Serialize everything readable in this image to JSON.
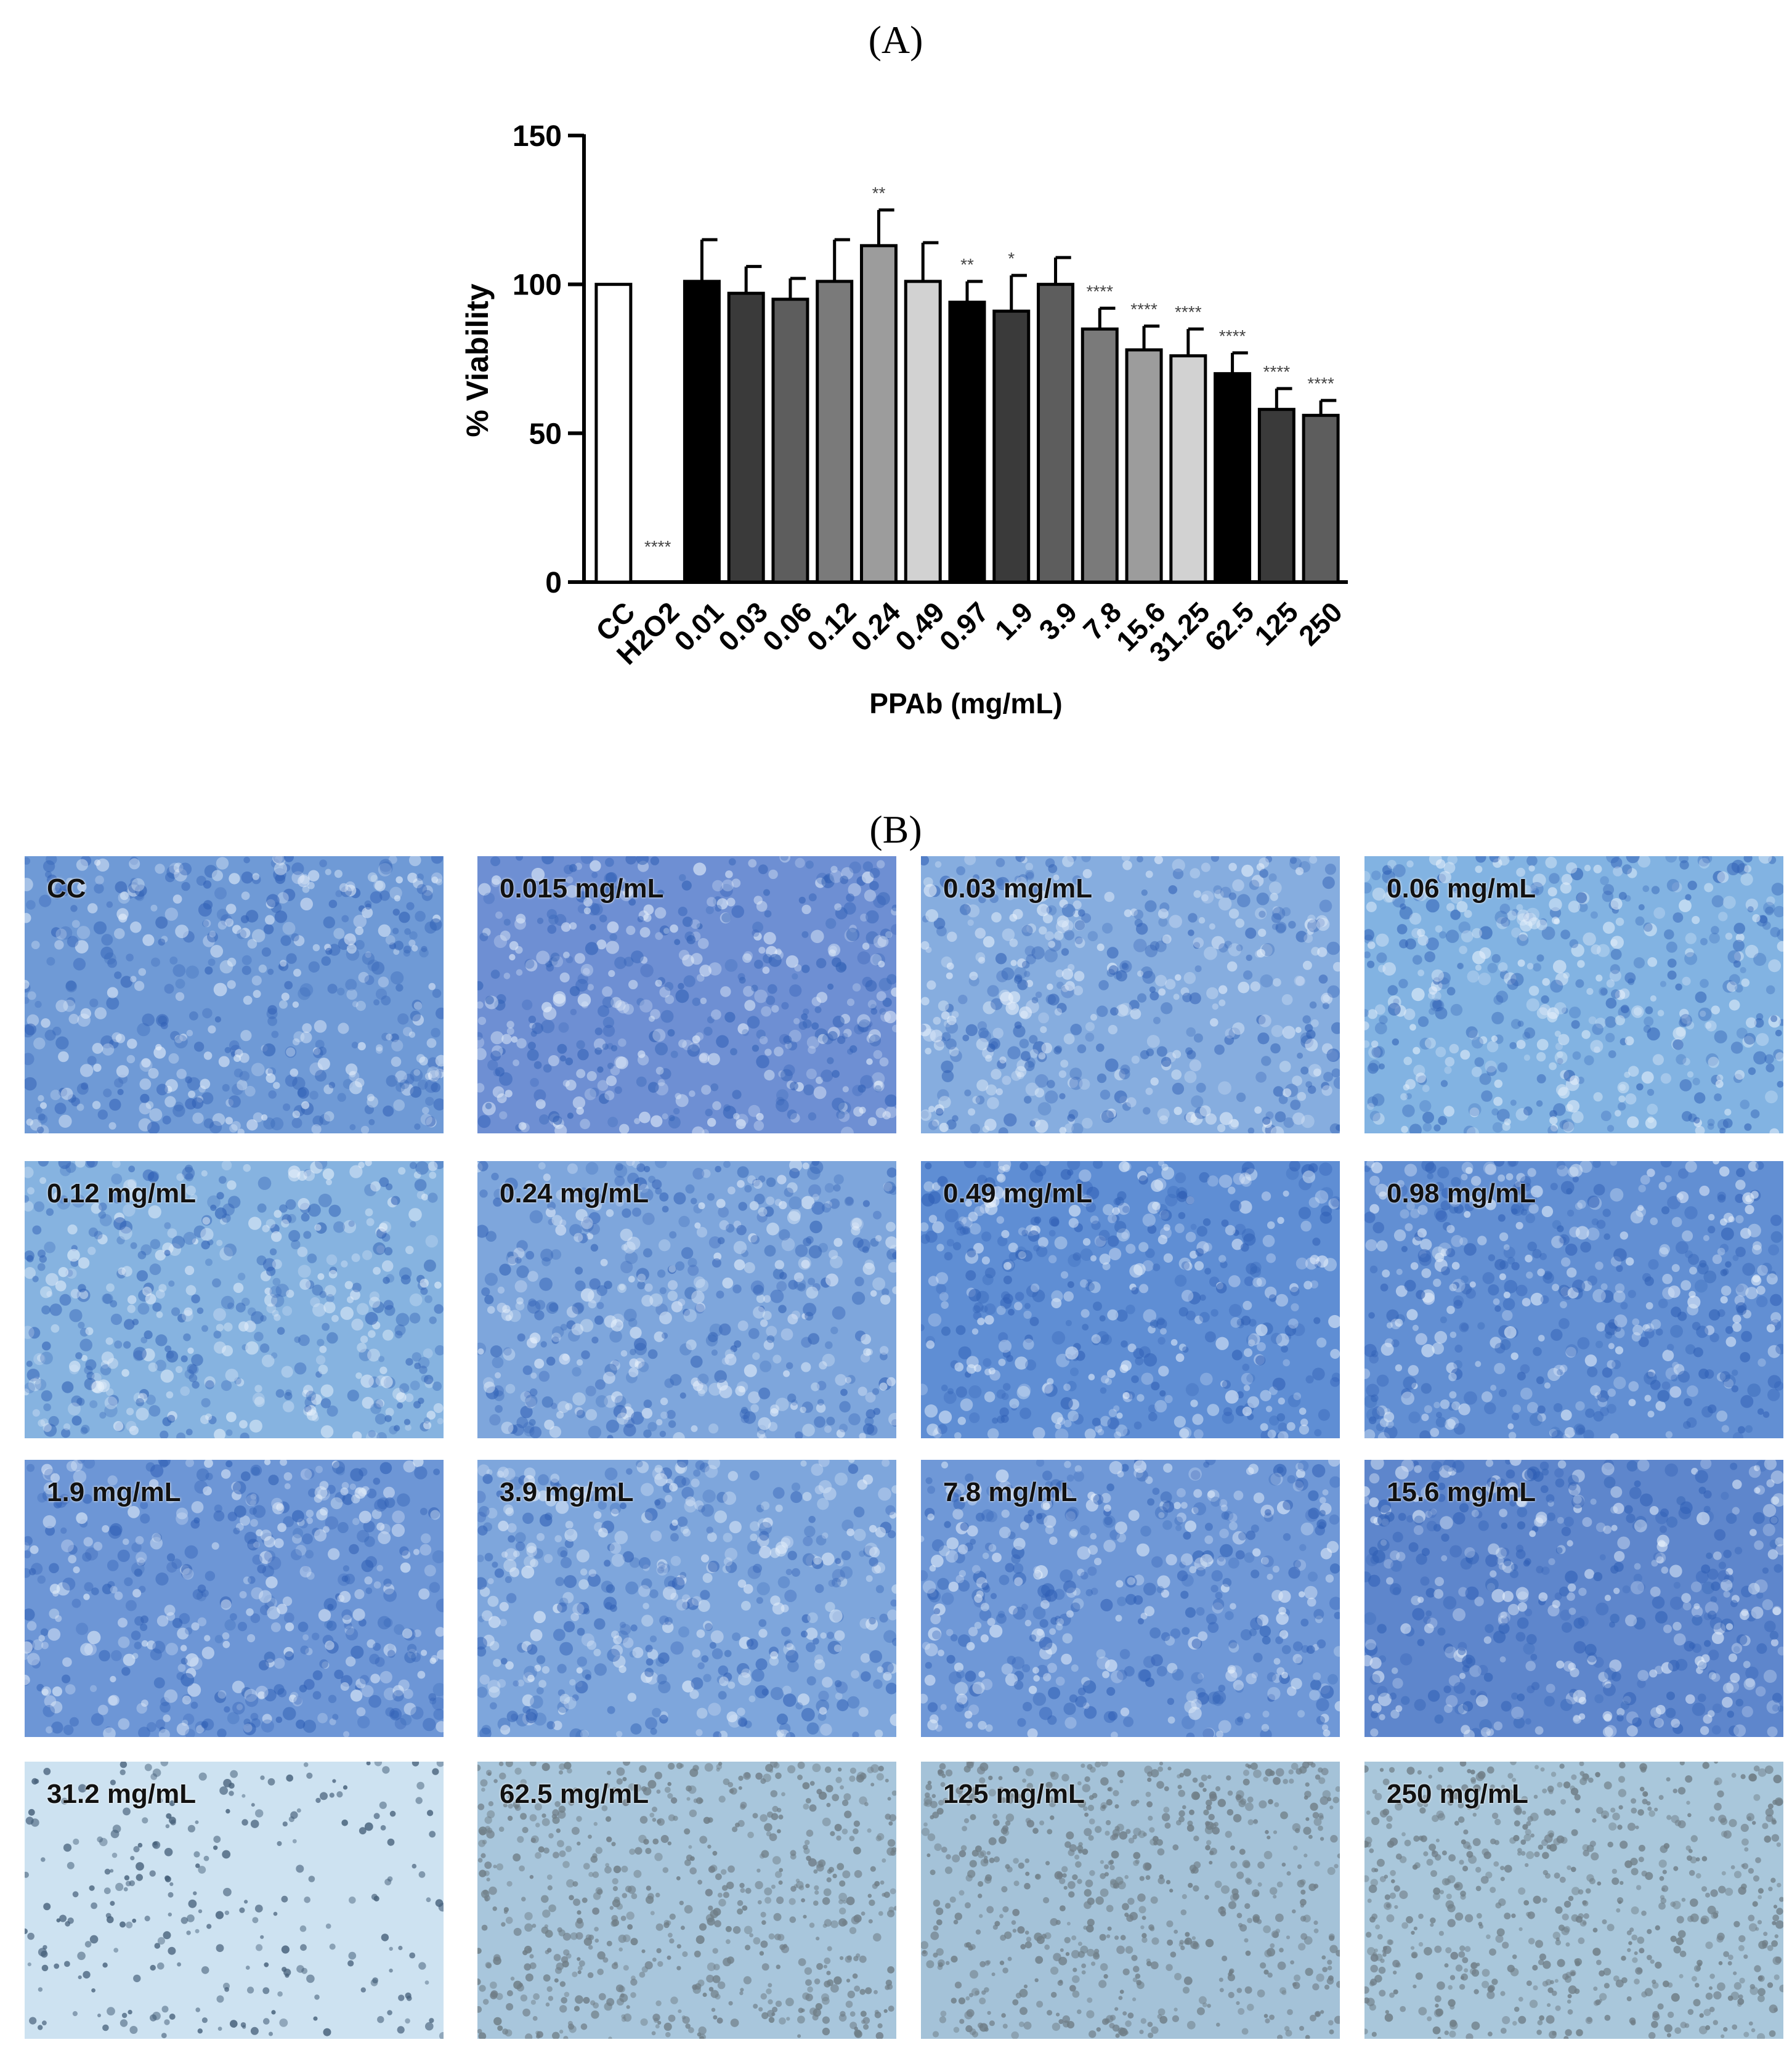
{
  "panel_a_label": "(A)",
  "panel_b_label": "(B)",
  "chart_data": {
    "type": "bar",
    "categories": [
      "CC",
      "H2O2",
      "0.01",
      "0.03",
      "0.06",
      "0.12",
      "0.24",
      "0.49",
      "0.97",
      "1.9",
      "3.9",
      "7.8",
      "15.6",
      "31.25",
      "62.5",
      "125",
      "250"
    ],
    "values": [
      100,
      0,
      101,
      97,
      95,
      101,
      113,
      101,
      94,
      91,
      100,
      85,
      78,
      76,
      70,
      58,
      56
    ],
    "errors": [
      0,
      0,
      14,
      9,
      7,
      14,
      12,
      13,
      7,
      12,
      9,
      7,
      8,
      9,
      7,
      7,
      5
    ],
    "significance": [
      "",
      "****",
      "",
      "",
      "",
      "",
      "**",
      "",
      "**",
      "*",
      "",
      "****",
      "****",
      "****",
      "****",
      "****",
      "****"
    ],
    "bar_colors": [
      "#ffffff",
      "#ffffff",
      "#000000",
      "#3a3a3a",
      "#5d5d5d",
      "#7a7a7a",
      "#9c9c9c",
      "#d2d2d2",
      "#000000",
      "#3a3a3a",
      "#5d5d5d",
      "#7a7a7a",
      "#9c9c9c",
      "#d2d2d2",
      "#000000",
      "#3a3a3a",
      "#5d5d5d"
    ],
    "xlabel": "PPAb (mg/mL)",
    "ylabel": "% Viability",
    "ylim": [
      0,
      150
    ],
    "yticks": [
      0,
      50,
      100,
      150
    ],
    "grid": false
  },
  "micrographs": [
    {
      "label": "CC",
      "tone": "#6f9ad6"
    },
    {
      "label": "0.015 mg/mL",
      "tone": "#6e8fd3"
    },
    {
      "label": "0.03 mg/mL",
      "tone": "#86addf"
    },
    {
      "label": "0.06 mg/mL",
      "tone": "#82b3e2"
    },
    {
      "label": "0.12 mg/mL",
      "tone": "#86b3e0"
    },
    {
      "label": "0.24 mg/mL",
      "tone": "#7ea6dc"
    },
    {
      "label": "0.49 mg/mL",
      "tone": "#5f8ed4"
    },
    {
      "label": "0.98 mg/mL",
      "tone": "#628fd3"
    },
    {
      "label": "1.9 mg/mL",
      "tone": "#6d96d6"
    },
    {
      "label": "3.9 mg/mL",
      "tone": "#7ea6dc"
    },
    {
      "label": "7.8 mg/mL",
      "tone": "#6f98d7"
    },
    {
      "label": "15.6 mg/mL",
      "tone": "#5e86cc"
    },
    {
      "label": "31.2 mg/mL",
      "tone": "#cde2f1"
    },
    {
      "label": "62.5 mg/mL",
      "tone": "#a8c6dc"
    },
    {
      "label": "125 mg/mL",
      "tone": "#a4c2d8"
    },
    {
      "label": "250 mg/mL",
      "tone": "#a9c7db"
    }
  ]
}
